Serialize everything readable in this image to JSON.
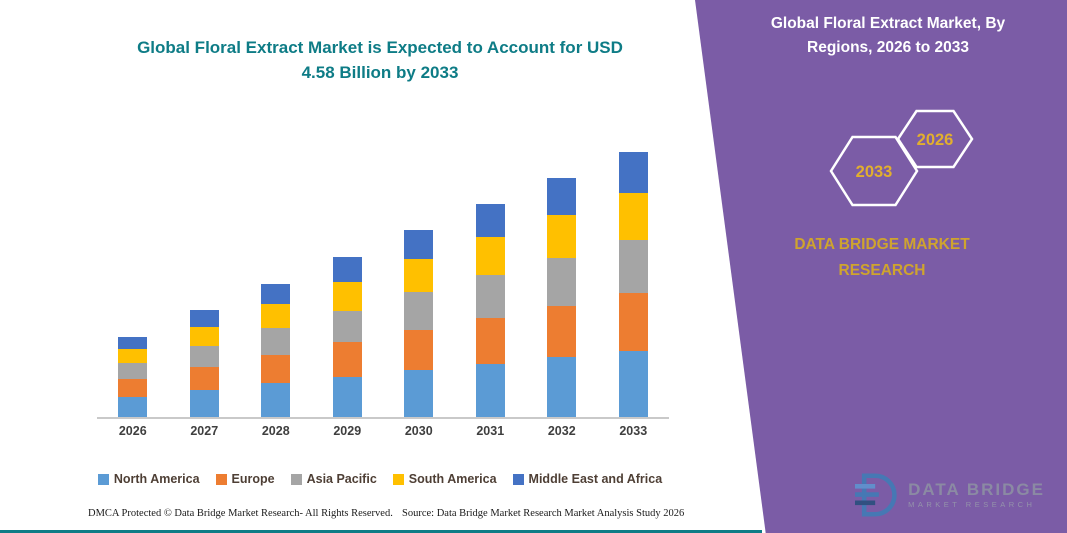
{
  "chart": {
    "title_line1": "Global Floral Extract Market is Expected to Account for USD",
    "title_line2": "4.58 Billion by 2033"
  },
  "chart_data": {
    "type": "bar",
    "stacked": true,
    "title": "Global Floral Extract Market is Expected to Account for USD 4.58 Billion by 2033",
    "xlabel": "",
    "ylabel": "",
    "ylim": [
      0,
      5
    ],
    "grid": false,
    "legend_position": "bottom",
    "categories": [
      "2026",
      "2027",
      "2028",
      "2029",
      "2030",
      "2031",
      "2032",
      "2033"
    ],
    "series": [
      {
        "name": "North America",
        "color": "#5B9BD5",
        "values": [
          0.35,
          0.46,
          0.58,
          0.69,
          0.81,
          0.92,
          1.03,
          1.15
        ]
      },
      {
        "name": "Europe",
        "color": "#ED7D31",
        "values": [
          0.3,
          0.4,
          0.5,
          0.6,
          0.7,
          0.79,
          0.89,
          0.99
        ]
      },
      {
        "name": "Asia Pacific",
        "color": "#A5A5A5",
        "values": [
          0.28,
          0.37,
          0.46,
          0.55,
          0.65,
          0.74,
          0.83,
          0.92
        ]
      },
      {
        "name": "South America",
        "color": "#FFC000",
        "values": [
          0.25,
          0.33,
          0.42,
          0.5,
          0.58,
          0.66,
          0.74,
          0.82
        ]
      },
      {
        "name": "Middle East and Africa",
        "color": "#4472C4",
        "values": [
          0.2,
          0.29,
          0.35,
          0.43,
          0.5,
          0.58,
          0.64,
          0.7
        ]
      }
    ]
  },
  "footer": {
    "dmca": "DMCA Protected © Data Bridge Market Research-  All Rights Reserved.",
    "source": "Source: Data Bridge Market Research  Market Analysis Study 2026"
  },
  "sidebar": {
    "title_line1": "Global Floral Extract Market, By",
    "title_line2": "Regions, 2026 to 2033",
    "hex_left_year": "2033",
    "hex_right_year": "2026",
    "brand_line1": "DATA BRIDGE MARKET",
    "brand_line2": "RESEARCH",
    "logo_name": "DATA BRIDGE",
    "logo_sub": "MARKET RESEARCH",
    "accent_purple": "#7b5ca6",
    "accent_teal": "#0e7c86",
    "accent_gold": "#cfa42e"
  }
}
